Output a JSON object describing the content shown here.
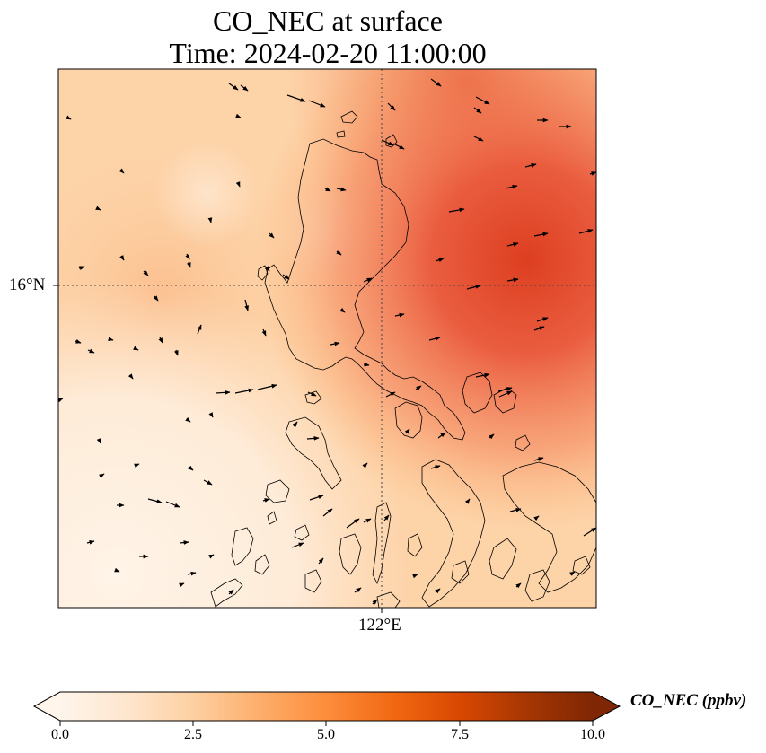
{
  "title_line1": "CO_NEC at surface",
  "title_line2": "Time: 2024-02-20 11:00:00",
  "lat_label": "16°N",
  "lon_label": "122°E",
  "colorbar": {
    "label": "CO_NEC (ppbv)",
    "min": 0.0,
    "max": 10.0,
    "extend": "both",
    "ticks": [
      "0.0",
      "2.5",
      "5.0",
      "7.5",
      "10.0"
    ],
    "colormap": [
      "#fff5eb",
      "#fee6ce",
      "#fdd0a2",
      "#fdae6b",
      "#fd8d3c",
      "#f16913",
      "#d94801",
      "#a63603",
      "#7f2704"
    ]
  },
  "map": {
    "gridlines": "dotted",
    "coastlines": true,
    "wind_vectors": true
  }
}
